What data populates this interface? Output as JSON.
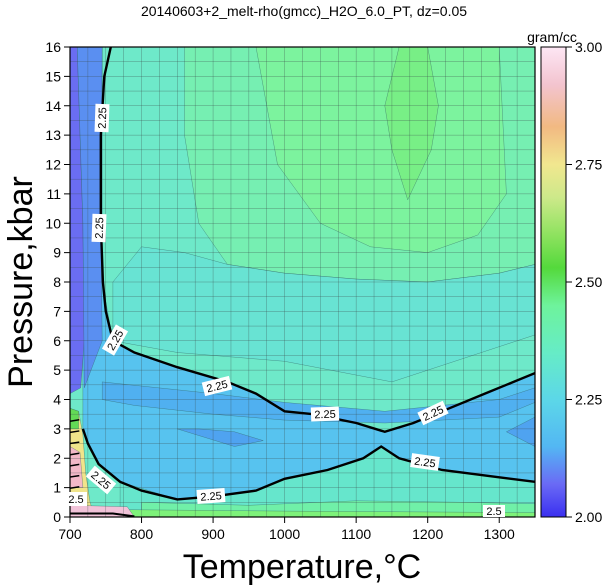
{
  "chart_data": {
    "type": "heatmap",
    "title": "20140603+2_melt-rho(gmcc)_H2O_6.0_PT, dz=0.05",
    "xlabel": "Temperature,°C",
    "ylabel": "Pressure,kbar",
    "xlim": [
      700,
      1350
    ],
    "ylim": [
      0,
      16
    ],
    "x_ticks": [
      "700",
      "800",
      "900",
      "1000",
      "1100",
      "1200",
      "1300"
    ],
    "y_ticks": [
      "0",
      "1",
      "2",
      "3",
      "4",
      "5",
      "6",
      "7",
      "8",
      "9",
      "10",
      "11",
      "12",
      "13",
      "14",
      "15",
      "16"
    ],
    "grid": true,
    "colorbar": {
      "unit": "gram/cc",
      "range": [
        2.0,
        3.0
      ],
      "ticks": [
        "2.00",
        "2.25",
        "2.50",
        "2.75",
        "3.00"
      ]
    },
    "contour_labels": [
      "2.25",
      "2.25",
      "2.25",
      "2.25",
      "2.25",
      "2.25",
      "2.25",
      "2.25",
      "2.25",
      "2.5",
      "2.5"
    ],
    "contour_225_left": [
      [
        757,
        16
      ],
      [
        748,
        15
      ],
      [
        743,
        13
      ],
      [
        743,
        10
      ],
      [
        746,
        8
      ],
      [
        750,
        7
      ],
      [
        760,
        6
      ],
      [
        790,
        5.6
      ],
      [
        850,
        5.1
      ],
      [
        920,
        4.6
      ],
      [
        960,
        4.2
      ],
      [
        1000,
        3.6
      ],
      [
        1040,
        3.5
      ],
      [
        1100,
        3.2
      ],
      [
        1140,
        2.9
      ],
      [
        1180,
        3.2
      ],
      [
        1220,
        3.6
      ],
      [
        1280,
        4.2
      ],
      [
        1350,
        4.9
      ]
    ],
    "contour_225_bottom": [
      [
        718,
        3.0
      ],
      [
        725,
        2.5
      ],
      [
        740,
        1.8
      ],
      [
        770,
        1.2
      ],
      [
        800,
        0.9
      ],
      [
        850,
        0.6
      ],
      [
        900,
        0.7
      ],
      [
        960,
        0.9
      ],
      [
        1000,
        1.3
      ],
      [
        1060,
        1.6
      ],
      [
        1110,
        2.0
      ],
      [
        1135,
        2.4
      ],
      [
        1160,
        2.0
      ],
      [
        1220,
        1.6
      ],
      [
        1300,
        1.35
      ],
      [
        1350,
        1.2
      ]
    ]
  }
}
